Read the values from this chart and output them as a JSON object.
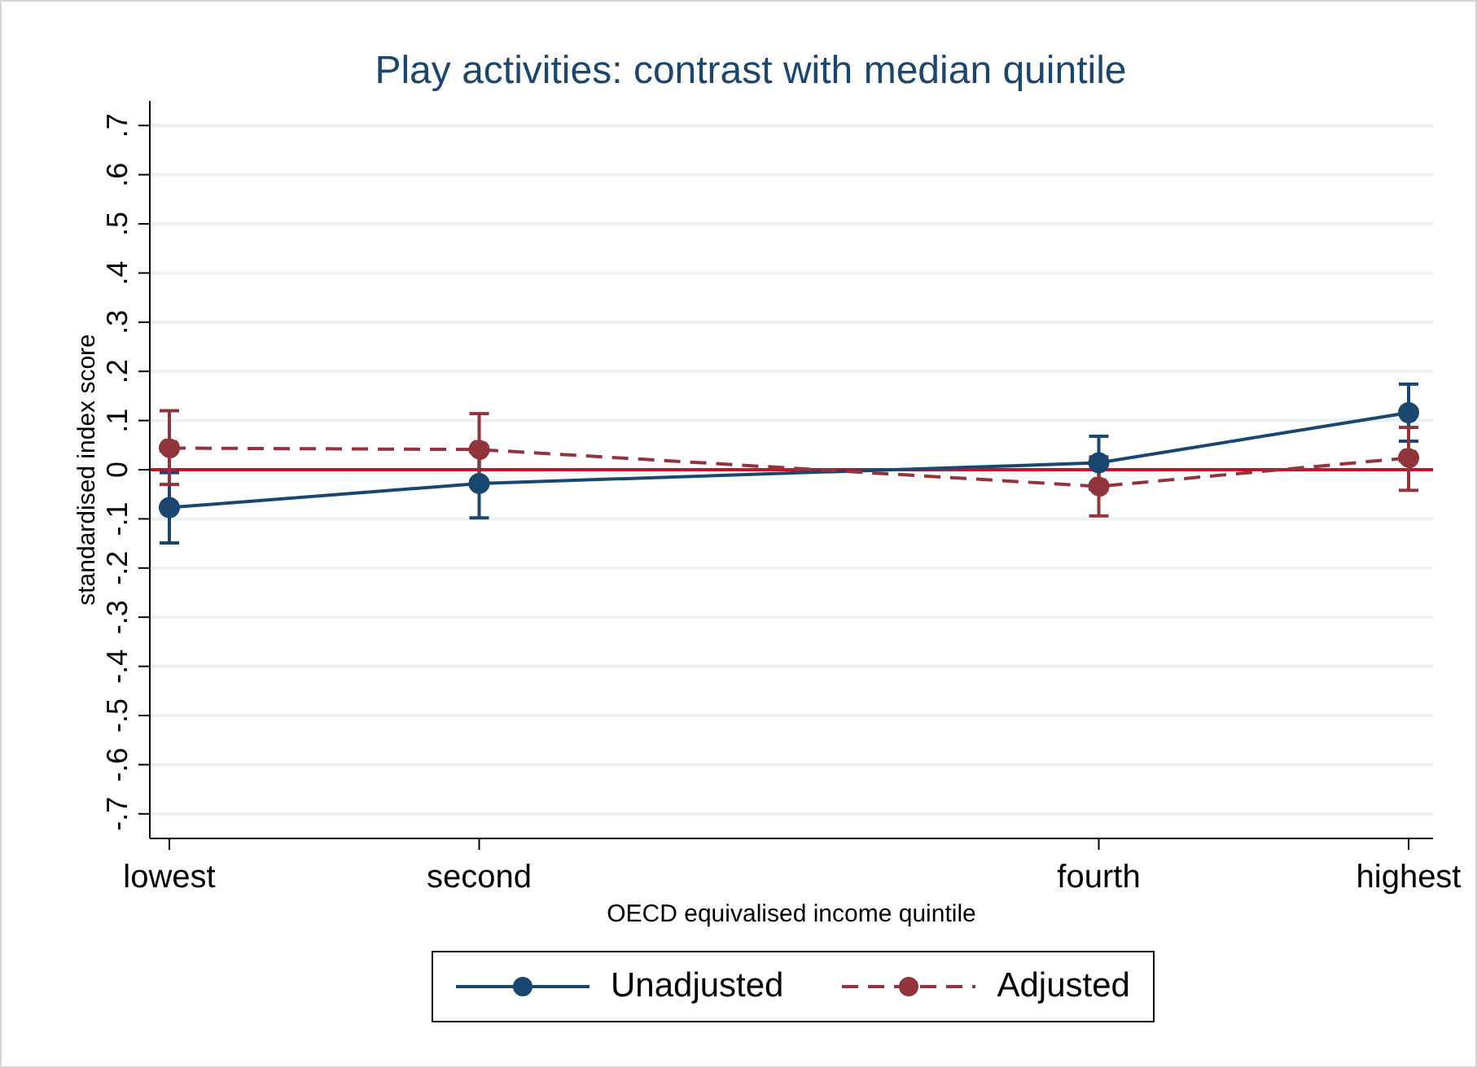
{
  "chart_data": {
    "type": "line",
    "title": "Play activities: contrast with median quintile",
    "xlabel": "OECD equivalised income quintile",
    "ylabel": "standardised index score",
    "categories": [
      "lowest",
      "second",
      null,
      "fourth",
      "highest"
    ],
    "ylim": [
      -0.75,
      0.75
    ],
    "yticks": [
      {
        "value": -0.7,
        "label": "-.7"
      },
      {
        "value": -0.6,
        "label": "-.6"
      },
      {
        "value": -0.5,
        "label": "-.5"
      },
      {
        "value": -0.4,
        "label": "-.4"
      },
      {
        "value": -0.3,
        "label": "-.3"
      },
      {
        "value": -0.2,
        "label": "-.2"
      },
      {
        "value": -0.1,
        "label": "-.1"
      },
      0,
      {
        "value": 0.1,
        "label": ".1"
      },
      {
        "value": 0.2,
        "label": ".2"
      },
      {
        "value": 0.3,
        "label": ".3"
      },
      {
        "value": 0.4,
        "label": ".4"
      },
      {
        "value": 0.5,
        "label": ".5"
      },
      {
        "value": 0.6,
        "label": ".6"
      },
      {
        "value": 0.7,
        "label": ".7"
      }
    ],
    "series": [
      {
        "name": "Unadjusted",
        "color": "#1a476f",
        "values": [
          -0.077,
          -0.028,
          null,
          0.014,
          0.116
        ],
        "errors": [
          [
            -0.149,
            -0.006
          ],
          0.07,
          null,
          [
            -0.04,
            0.068
          ],
          [
            0.058,
            0.174
          ]
        ],
        "line_style": "solid"
      },
      {
        "name": "Adjusted",
        "color": "#90353b",
        "values": [
          0.044,
          0.041,
          null,
          -0.034,
          0.024
        ],
        "errors": [
          [
            -0.03,
            0.12
          ],
          0.073,
          null,
          [
            -0.094,
            0.026
          ],
          [
            -0.042,
            0.086
          ]
        ],
        "line_style": "dashed"
      }
    ],
    "ref_lines": [
      {
        "axis": "y",
        "value": 0,
        "color": "#c8102e"
      }
    ],
    "grid": "y",
    "legend": "bottom",
    "marker": "circle"
  }
}
